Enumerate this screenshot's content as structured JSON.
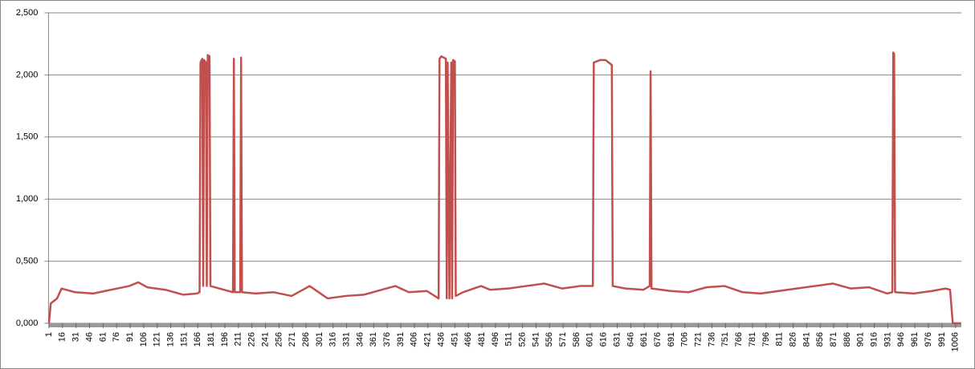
{
  "chart_data": {
    "type": "line",
    "x": [
      1,
      3,
      10,
      15,
      30,
      50,
      70,
      90,
      100,
      110,
      130,
      150,
      165,
      168,
      169,
      171,
      172,
      173,
      175,
      176,
      177,
      179,
      180,
      205,
      206,
      207,
      213,
      214,
      215,
      230,
      250,
      270,
      290,
      300,
      310,
      330,
      350,
      370,
      385,
      400,
      420,
      433,
      434,
      436,
      441,
      442,
      443,
      445,
      447,
      448,
      449,
      451,
      452,
      460,
      480,
      490,
      510,
      530,
      550,
      570,
      590,
      604,
      605,
      612,
      618,
      625,
      626,
      640,
      660,
      667,
      668,
      669,
      690,
      710,
      730,
      750,
      770,
      790,
      810,
      830,
      850,
      870,
      890,
      910,
      930,
      936,
      937,
      938,
      939,
      960,
      980,
      995,
      1000,
      1003,
      1012
    ],
    "series": [
      {
        "color": "#c0504d",
        "values": [
          0,
          0.16,
          0.2,
          0.28,
          0.25,
          0.24,
          0.27,
          0.3,
          0.33,
          0.29,
          0.27,
          0.23,
          0.24,
          0.25,
          2.1,
          2.13,
          0.3,
          2.12,
          2.1,
          0.3,
          2.16,
          2.15,
          0.3,
          0.25,
          2.13,
          0.25,
          0.25,
          2.14,
          0.25,
          0.24,
          0.25,
          0.22,
          0.3,
          0.25,
          0.2,
          0.22,
          0.23,
          0.27,
          0.3,
          0.25,
          0.26,
          0.2,
          2.13,
          2.15,
          2.13,
          0.2,
          2.1,
          0.2,
          2.1,
          0.2,
          2.12,
          2.11,
          0.22,
          0.25,
          0.3,
          0.27,
          0.28,
          0.3,
          0.32,
          0.28,
          0.3,
          0.3,
          2.1,
          2.12,
          2.12,
          2.08,
          0.3,
          0.28,
          0.27,
          0.3,
          2.03,
          0.28,
          0.26,
          0.25,
          0.29,
          0.3,
          0.25,
          0.24,
          0.26,
          0.28,
          0.3,
          0.32,
          0.28,
          0.29,
          0.24,
          0.25,
          2.18,
          2.17,
          0.25,
          0.24,
          0.26,
          0.28,
          0.27,
          0,
          0
        ]
      }
    ],
    "xlim": [
      0.5,
      1012.5
    ],
    "xticks": [
      1,
      16,
      31,
      46,
      61,
      76,
      91,
      106,
      121,
      136,
      151,
      166,
      181,
      196,
      211,
      226,
      241,
      256,
      271,
      286,
      301,
      316,
      331,
      346,
      361,
      376,
      391,
      406,
      421,
      436,
      451,
      466,
      481,
      496,
      511,
      526,
      541,
      556,
      571,
      586,
      601,
      616,
      631,
      646,
      661,
      676,
      691,
      706,
      721,
      736,
      751,
      766,
      781,
      796,
      811,
      826,
      841,
      856,
      871,
      886,
      901,
      916,
      931,
      946,
      961,
      976,
      991,
      1006
    ],
    "ylim": [
      0,
      2.5
    ],
    "yticks": [
      {
        "value": 0,
        "label": "0,000"
      },
      {
        "value": 0.5,
        "label": "0,500"
      },
      {
        "value": 1,
        "label": "1,000"
      },
      {
        "value": 1.5,
        "label": "1,500"
      },
      {
        "value": 2,
        "label": "2,000"
      },
      {
        "value": 2.5,
        "label": "2,500"
      }
    ],
    "grid": true
  }
}
